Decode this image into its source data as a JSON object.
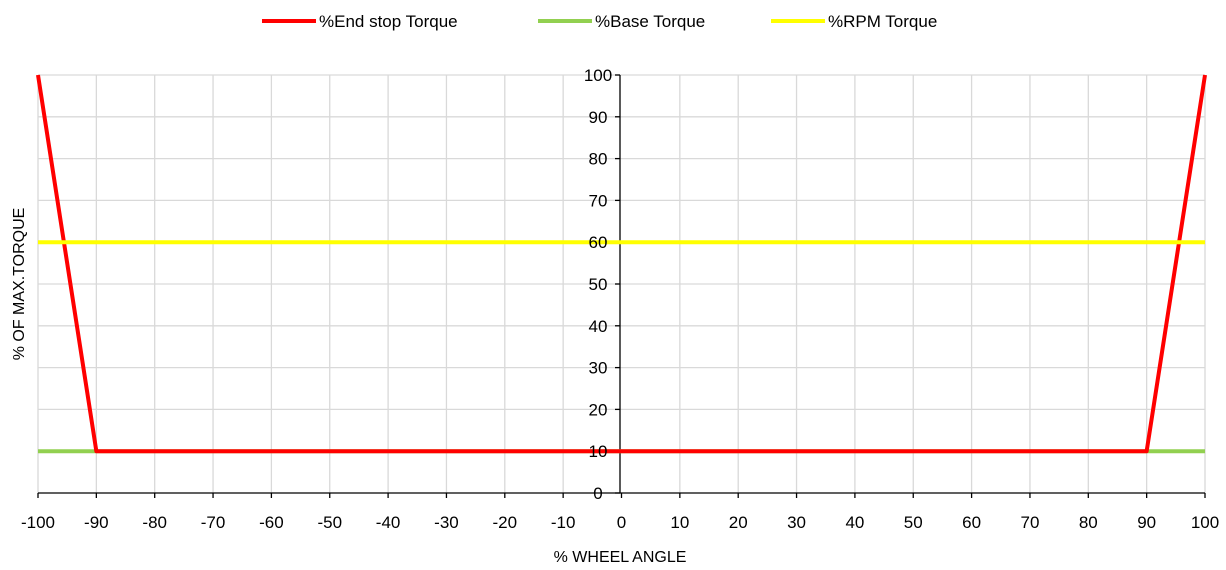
{
  "chart_data": {
    "type": "line",
    "xlabel": "% WHEEL ANGLE",
    "ylabel": "% OF MAX.TORQUE",
    "xlim": [
      -100,
      100
    ],
    "ylim": [
      0,
      100
    ],
    "x_ticks": [
      -100,
      -90,
      -80,
      -70,
      -60,
      -50,
      -40,
      -30,
      -20,
      -10,
      0,
      10,
      20,
      30,
      40,
      50,
      60,
      70,
      80,
      90,
      100
    ],
    "y_ticks": [
      0,
      10,
      20,
      30,
      40,
      50,
      60,
      70,
      80,
      90,
      100
    ],
    "grid": true,
    "legend_position": "top",
    "series": [
      {
        "name": "%End stop Torque",
        "color": "#ff0000",
        "x": [
          -100,
          -90,
          90,
          100
        ],
        "y": [
          100,
          10,
          10,
          100
        ]
      },
      {
        "name": "%Base Torque",
        "color": "#92d050",
        "x": [
          -100,
          100
        ],
        "y": [
          10,
          10
        ]
      },
      {
        "name": "%RPM Torque",
        "color": "#ffff00",
        "x": [
          -100,
          100
        ],
        "y": [
          60,
          60
        ]
      }
    ]
  }
}
